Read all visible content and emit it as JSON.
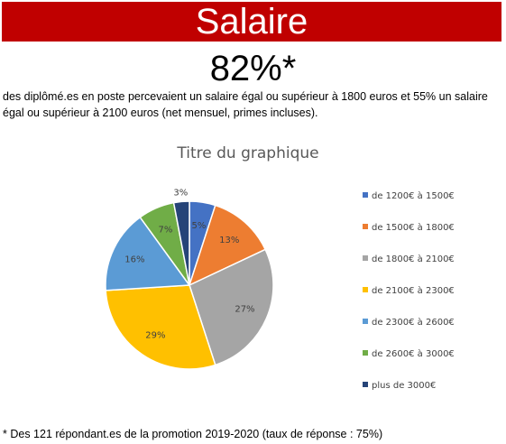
{
  "header": {
    "title": "Salaire",
    "title_bg": "#c00000",
    "headline": "82%*",
    "description": "des diplômé.es en poste percevaient un salaire égal ou supérieur à 1800 euros et 55% un salaire égal ou supérieur à 2100 euros (net mensuel, primes incluses)."
  },
  "footnote": "* Des 121 répondant.es de la promotion 2019-2020 (taux de réponse : 75%)",
  "chart_data": {
    "type": "pie",
    "title": "Titre du graphique",
    "legend_position": "right",
    "slices": [
      {
        "label": "de 1200€ à 1500€",
        "value": 5,
        "display": "5%",
        "color": "#4472c4"
      },
      {
        "label": "de 1500€ à 1800€",
        "value": 13,
        "display": "13%",
        "color": "#ed7d31"
      },
      {
        "label": "de 1800€ à 2100€",
        "value": 27,
        "display": "27%",
        "color": "#a5a5a5"
      },
      {
        "label": "de 2100€ à 2300€",
        "value": 29,
        "display": "29%",
        "color": "#ffc000"
      },
      {
        "label": "de 2300€ à 2600€",
        "value": 16,
        "display": "16%",
        "color": "#5b9bd5"
      },
      {
        "label": "de 2600€ à 3000€",
        "value": 7,
        "display": "7%",
        "color": "#70ad47"
      },
      {
        "label": "plus de 3000€",
        "value": 3,
        "display": "3%",
        "color": "#264478"
      }
    ]
  }
}
